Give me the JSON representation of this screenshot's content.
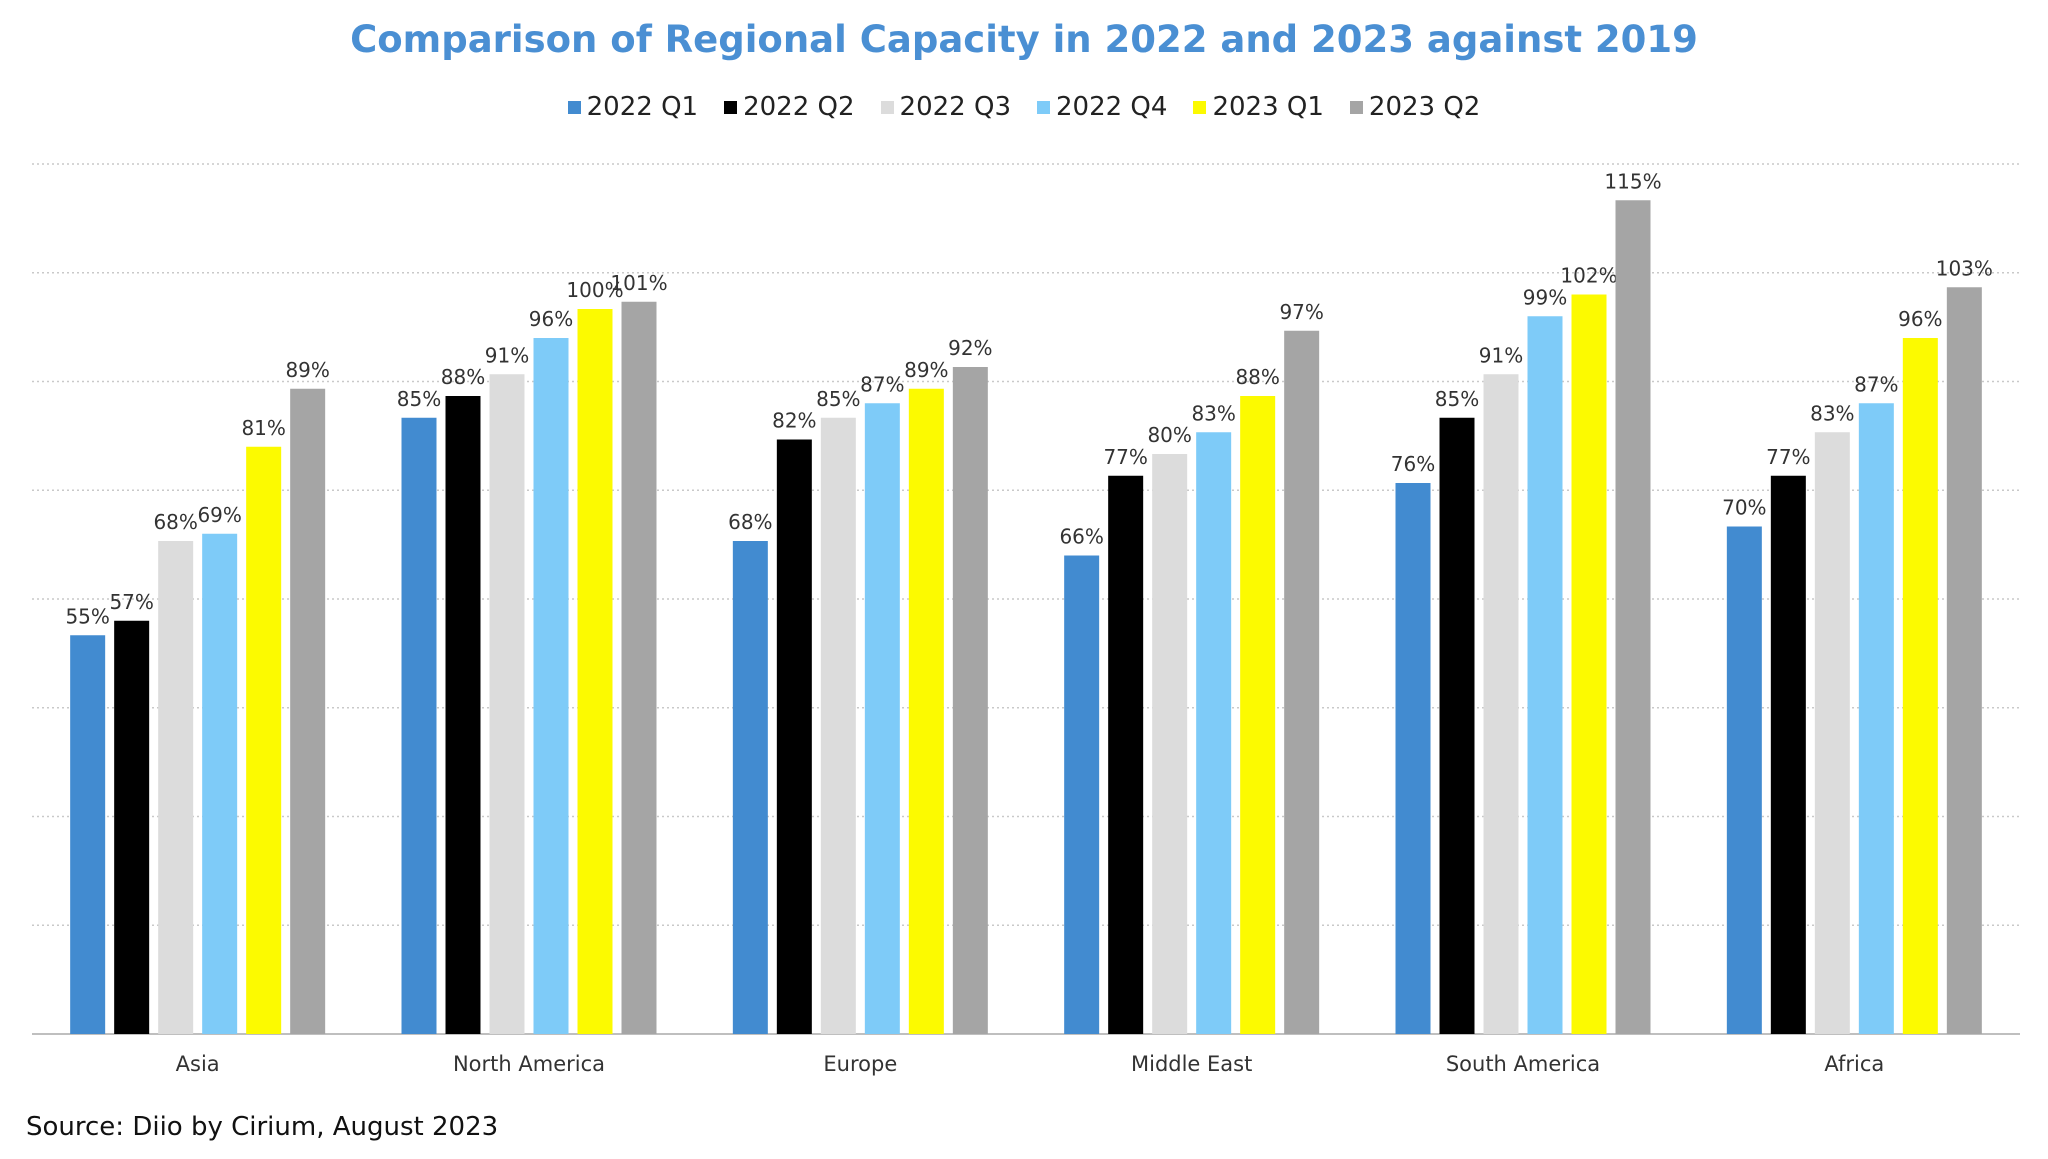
{
  "chart_data": {
    "type": "bar",
    "title": "Comparison of Regional Capacity in 2022 and 2023 against 2019",
    "categories": [
      "Asia",
      "North America",
      "Europe",
      "Middle East",
      "South America",
      "Africa"
    ],
    "series": [
      {
        "name": "2022 Q1",
        "color": "#428bd0",
        "values": [
          55,
          85,
          68,
          66,
          76,
          70
        ],
        "labels": [
          "55%",
          "85%",
          "68%",
          "66%",
          "76%",
          "70%"
        ]
      },
      {
        "name": "2022 Q2",
        "color": "#000000",
        "values": [
          57,
          88,
          82,
          77,
          85,
          77
        ],
        "labels": [
          "57%",
          "88%",
          "82%",
          "77%",
          "85%",
          "77%"
        ]
      },
      {
        "name": "2022 Q3",
        "color": "#dcdcdc",
        "values": [
          68,
          91,
          85,
          80,
          91,
          83
        ],
        "labels": [
          "68%",
          "91%",
          "85%",
          "80%",
          "91%",
          "83%"
        ]
      },
      {
        "name": "2022 Q4",
        "color": "#7ecbf8",
        "values": [
          69,
          96,
          87,
          83,
          99,
          87
        ],
        "labels": [
          "69%",
          "96%",
          "87%",
          "83%",
          "99%",
          "87%"
        ]
      },
      {
        "name": "2023 Q1",
        "color": "#fcfa00",
        "values": [
          81,
          100,
          89,
          88,
          102,
          96
        ],
        "labels": [
          "81%",
          "100%",
          "89%",
          "88%",
          "102%",
          "96%"
        ]
      },
      {
        "name": "2023 Q2",
        "color": "#a5a5a5",
        "values": [
          89,
          101,
          92,
          97,
          115,
          103
        ],
        "labels": [
          "89%",
          "101%",
          "92%",
          "97%",
          "115%",
          "103%"
        ]
      }
    ],
    "ylim": [
      0,
      120
    ],
    "gridlines": true,
    "legend_position": "top-center",
    "source": "Source: Diio by Cirium, August 2023"
  }
}
